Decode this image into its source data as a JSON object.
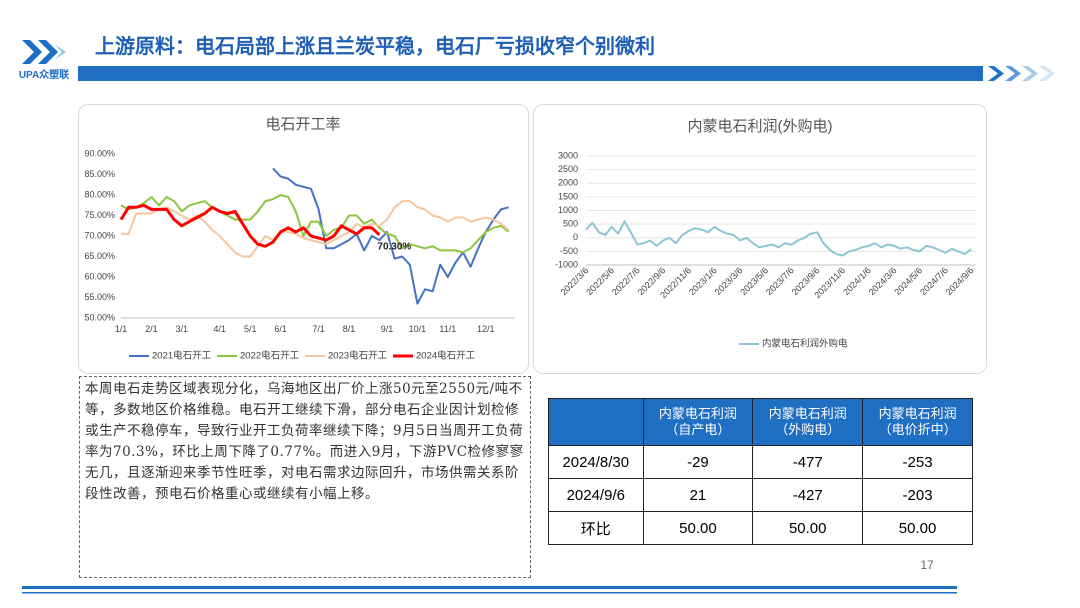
{
  "header": {
    "logo_text": "UPA众塑联",
    "title": "上游原料：电石局部上涨且兰炭平稳，电石厂亏损收窄个别微利"
  },
  "chart_data": [
    {
      "type": "line",
      "title": "电石开工率",
      "categories": [
        "1/1",
        null,
        null,
        null,
        "2/1",
        null,
        null,
        null,
        "3/1",
        null,
        null,
        null,
        null,
        "4/1",
        null,
        null,
        null,
        "5/1",
        null,
        null,
        null,
        "6/1",
        null,
        null,
        null,
        null,
        "7/1",
        null,
        null,
        null,
        "8/1",
        null,
        null,
        null,
        null,
        "9/1",
        null,
        null,
        null,
        "10/1",
        null,
        null,
        null,
        "11/1",
        null,
        null,
        null,
        null,
        "12/1",
        null,
        null,
        null
      ],
      "ylim": [
        50,
        90
      ],
      "yticks": [
        {
          "value": 50,
          "label": "50.00%"
        },
        {
          "value": 55,
          "label": "55.00%"
        },
        {
          "value": 60,
          "label": "60.00%"
        },
        {
          "value": 65,
          "label": "65.00%"
        },
        {
          "value": 70,
          "label": "70.00%"
        },
        {
          "value": 75,
          "label": "75.00%"
        },
        {
          "value": 80,
          "label": "80.00%"
        },
        {
          "value": 85,
          "label": "85.00%"
        },
        {
          "value": 90,
          "label": "90.00%"
        }
      ],
      "grid": false,
      "series": [
        {
          "name": "2021电石开工",
          "color": "#4472c4",
          "width": 2,
          "values": [
            null,
            null,
            null,
            null,
            null,
            null,
            null,
            null,
            null,
            null,
            null,
            null,
            null,
            null,
            null,
            null,
            null,
            null,
            null,
            null,
            86.5,
            84.5,
            84,
            82.5,
            82,
            81.5,
            76.5,
            67,
            67,
            68,
            69,
            70.5,
            66.5,
            70,
            69,
            71,
            64.5,
            65,
            63,
            53.5,
            57,
            56.5,
            63,
            60,
            63.5,
            66,
            62.5,
            67,
            71,
            74,
            76.5,
            77
          ]
        },
        {
          "name": "2022电石开工",
          "color": "#8cc63f",
          "width": 2,
          "values": [
            77.5,
            76.5,
            77,
            78,
            79.5,
            77.5,
            79.5,
            78.5,
            76,
            77.5,
            78,
            78.5,
            77,
            76,
            75,
            74,
            74,
            74,
            76,
            78.5,
            79,
            80,
            79.5,
            76,
            70,
            73.5,
            73.5,
            70,
            71.5,
            72,
            75,
            75,
            73,
            74,
            72,
            70.5,
            70,
            67,
            68,
            67.5,
            67,
            67.5,
            66.5,
            66.5,
            66.5,
            66,
            67,
            69,
            71,
            72,
            72.5,
            71
          ]
        },
        {
          "name": "2023电石开工",
          "color": "#f8c59c",
          "width": 2,
          "values": [
            70.5,
            70.5,
            75.5,
            75.5,
            75.5,
            76.5,
            77,
            76,
            75,
            74,
            75,
            73.5,
            71.5,
            70,
            68,
            66,
            65,
            65,
            67.5,
            70,
            69,
            71,
            71,
            70.5,
            69.5,
            69,
            68.5,
            68,
            69,
            70,
            71,
            73,
            72,
            73,
            72.5,
            74,
            77,
            78.5,
            78.5,
            77,
            76.5,
            75,
            74.5,
            73.5,
            74.5,
            74.5,
            73.5,
            74,
            74.5,
            74,
            73,
            71.5
          ]
        },
        {
          "name": "2024电石开工",
          "color": "#ff0000",
          "width": 3,
          "values": [
            74,
            77,
            77,
            77.5,
            76.5,
            76.5,
            76.5,
            74,
            72.5,
            73.5,
            74.5,
            75.5,
            77,
            76,
            75.5,
            76,
            73,
            70,
            68,
            67.5,
            68.5,
            71,
            72,
            71,
            72,
            70,
            69.5,
            69,
            70,
            72.5,
            71.5,
            70.5,
            72,
            72,
            70.3,
            null,
            null,
            null,
            null,
            null,
            null,
            null,
            null,
            null,
            null,
            null,
            null,
            null,
            null,
            null,
            null,
            null
          ]
        }
      ],
      "annotation": "70.30%"
    },
    {
      "type": "line",
      "title": "内蒙电石利润(外购电)",
      "categories": [
        "2022/3/6",
        null,
        null,
        null,
        "2022/5/6",
        null,
        null,
        null,
        "2022/7/6",
        null,
        null,
        null,
        "2022/9/6",
        null,
        null,
        null,
        "2022/11/6",
        null,
        null,
        null,
        "2023/1/6",
        null,
        null,
        null,
        "2023/3/6",
        null,
        null,
        null,
        "2023/5/6",
        null,
        null,
        null,
        "2023/7/6",
        null,
        null,
        null,
        "2023/9/6",
        null,
        null,
        null,
        "2023/11/6",
        null,
        null,
        null,
        "2024/1/6",
        null,
        null,
        null,
        "2024/3/6",
        null,
        null,
        null,
        "2024/5/6",
        null,
        null,
        null,
        "2024/7/6",
        null,
        null,
        null,
        "2024/9/6"
      ],
      "ylim": [
        -1000,
        3000
      ],
      "yticks": [
        -1000,
        -500,
        0,
        500,
        1000,
        1500,
        2000,
        2500,
        3000
      ],
      "grid": true,
      "series": [
        {
          "name": "内蒙电石利润外购电",
          "color": "#8cc6d4",
          "width": 2,
          "values": [
            300,
            550,
            200,
            100,
            400,
            150,
            600,
            200,
            -250,
            -200,
            -100,
            -300,
            -100,
            0,
            -200,
            100,
            250,
            350,
            300,
            200,
            400,
            250,
            150,
            100,
            -100,
            0,
            -200,
            -350,
            -300,
            -250,
            -350,
            -200,
            -250,
            -100,
            0,
            150,
            200,
            -200,
            -450,
            -600,
            -650,
            -500,
            -450,
            -350,
            -300,
            -200,
            -350,
            -250,
            -300,
            -400,
            -350,
            -450,
            -500,
            -300,
            -350,
            -450,
            -550,
            -400,
            -500,
            -600,
            -427
          ]
        }
      ]
    }
  ],
  "text_box": "本周电石走势区域表现分化，乌海地区出厂价上涨50元至2550元/吨不等，多数地区价格维稳。电石开工继续下滑，部分电石企业因计划检修或生产不稳停车，导致行业开工负荷率继续下降；9月5日当周开工负荷率为70.3%，环比上周下降了0.77%。而进入9月，下游PVC检修寥寥无几，且逐渐迎来季节性旺季，对电石需求边际回升，市场供需关系阶段性改善，预电石价格重心或继续有小幅上移。",
  "table": {
    "header": [
      "内蒙电石利润\n（自产电）",
      "内蒙电石利润\n（外购电）",
      "内蒙电石利润\n（电价折中）"
    ],
    "rows": [
      [
        "2024/8/30",
        "-29",
        "-477",
        "-253"
      ],
      [
        "2024/9/6",
        "21",
        "-427",
        "-203"
      ],
      [
        "环比",
        "50.00",
        "50.00",
        "50.00"
      ]
    ]
  },
  "page_number": "17"
}
